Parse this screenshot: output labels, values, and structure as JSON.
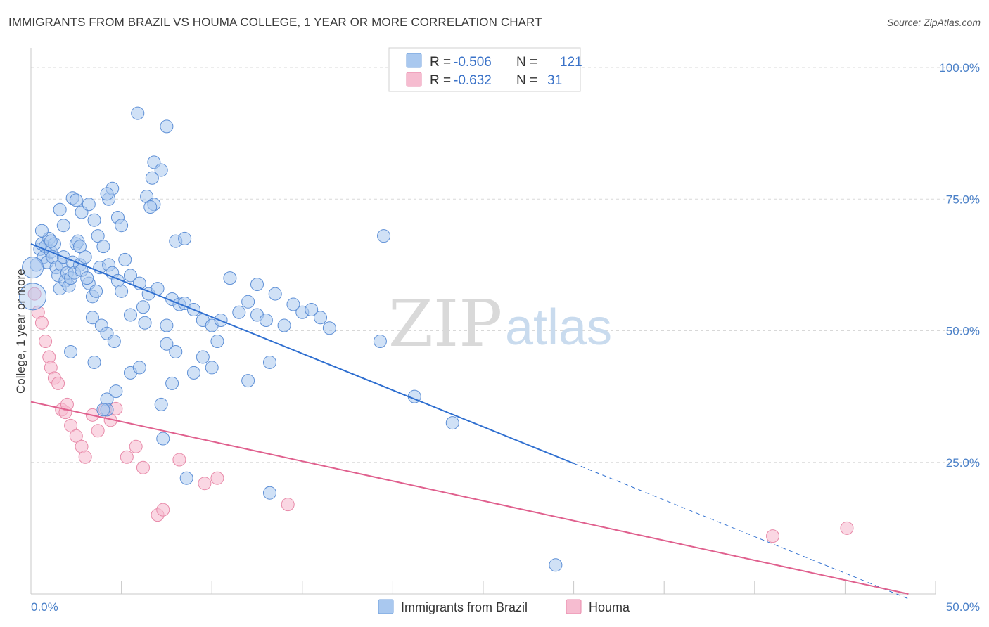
{
  "title": "IMMIGRANTS FROM BRAZIL VS HOUMA COLLEGE, 1 YEAR OR MORE CORRELATION CHART",
  "source": "Source: ZipAtlas.com",
  "watermark": {
    "zip": "ZIP",
    "atlas": "atlas"
  },
  "legend": {
    "r_label": "R =",
    "n_label": "N =",
    "rows": [
      {
        "r": "-0.506",
        "n": "121",
        "color": "#a9c8ef",
        "stroke": "#6f9fdc"
      },
      {
        "r": "-0.632",
        "n": "31",
        "color": "#f6bcd0",
        "stroke": "#e98aab"
      }
    ]
  },
  "colors": {
    "blue_fill": "#a9c8ef",
    "blue_stroke": "#5d8fd6",
    "blue_line": "#2f6fd0",
    "pink_fill": "#f6bcd0",
    "pink_stroke": "#e88aa9",
    "pink_line": "#e0608e",
    "grid": "#d8d8d8",
    "tick": "#4a80c8"
  },
  "chart_data": {
    "type": "scatter",
    "title": "IMMIGRANTS FROM BRAZIL VS HOUMA COLLEGE, 1 YEAR OR MORE CORRELATION CHART",
    "xlabel": "",
    "ylabel": "College, 1 year or more",
    "xlim": [
      0,
      50
    ],
    "ylim": [
      0,
      100
    ],
    "x_tick_labels": [
      "0.0%",
      "50.0%"
    ],
    "y_tick_labels": [
      "100.0%",
      "75.0%",
      "50.0%",
      "25.0%"
    ],
    "y_ticks": [
      100,
      75,
      50,
      25
    ],
    "grid": true,
    "legend_position": "top-center",
    "series": [
      {
        "name": "Immigrants from Brazil",
        "r": -0.506,
        "n": 121,
        "trend": {
          "x0": 0,
          "y0": 66.5,
          "x1": 30,
          "y1": 24.8,
          "dashed_to_x": 50
        },
        "points": [
          [
            0.3,
            62.5
          ],
          [
            0.5,
            65.5
          ],
          [
            0.6,
            66.5
          ],
          [
            0.7,
            64
          ],
          [
            0.8,
            66
          ],
          [
            0.9,
            63
          ],
          [
            1.0,
            67.5
          ],
          [
            1.1,
            65
          ],
          [
            1.2,
            64
          ],
          [
            1.3,
            66.5
          ],
          [
            1.4,
            62
          ],
          [
            1.5,
            60.5
          ],
          [
            1.6,
            58
          ],
          [
            1.7,
            62.5
          ],
          [
            1.8,
            64
          ],
          [
            1.9,
            59.5
          ],
          [
            2.0,
            61
          ],
          [
            2.1,
            58.5
          ],
          [
            2.2,
            60
          ],
          [
            2.3,
            63
          ],
          [
            2.4,
            61
          ],
          [
            2.5,
            66.5
          ],
          [
            2.6,
            67
          ],
          [
            2.7,
            62.5
          ],
          [
            2.8,
            61.5
          ],
          [
            3.0,
            64
          ],
          [
            3.2,
            59
          ],
          [
            3.4,
            56.5
          ],
          [
            3.6,
            57.5
          ],
          [
            3.8,
            62
          ],
          [
            0.6,
            69
          ],
          [
            1.1,
            67
          ],
          [
            1.8,
            70
          ],
          [
            2.3,
            75.2
          ],
          [
            2.5,
            74.8
          ],
          [
            2.8,
            72.5
          ],
          [
            3.2,
            74
          ],
          [
            3.5,
            71
          ],
          [
            3.7,
            68
          ],
          [
            4.0,
            66
          ],
          [
            4.3,
            62.5
          ],
          [
            4.5,
            61
          ],
          [
            4.8,
            59.5
          ],
          [
            5.0,
            57.5
          ],
          [
            5.2,
            63.5
          ],
          [
            5.5,
            60.5
          ],
          [
            6.0,
            59
          ],
          [
            6.2,
            54.5
          ],
          [
            6.5,
            57
          ],
          [
            7.0,
            58
          ],
          [
            7.5,
            51
          ],
          [
            7.8,
            56
          ],
          [
            8.2,
            55
          ],
          [
            8.5,
            55.2
          ],
          [
            9.0,
            54
          ],
          [
            9.5,
            52
          ],
          [
            10.0,
            51
          ],
          [
            10.5,
            52
          ],
          [
            11.0,
            60
          ],
          [
            11.5,
            53.5
          ],
          [
            12.0,
            55.5
          ],
          [
            12.5,
            53
          ],
          [
            13.0,
            52
          ],
          [
            13.5,
            57
          ],
          [
            14.0,
            51
          ],
          [
            14.5,
            55
          ],
          [
            15.0,
            53.5
          ],
          [
            15.5,
            54
          ],
          [
            16.0,
            52.5
          ],
          [
            16.5,
            50.5
          ],
          [
            3.4,
            52.5
          ],
          [
            3.9,
            51
          ],
          [
            4.2,
            49.5
          ],
          [
            4.6,
            48
          ],
          [
            5.5,
            53
          ],
          [
            6.3,
            51.5
          ],
          [
            7.5,
            47.5
          ],
          [
            8.0,
            46
          ],
          [
            9.5,
            45
          ],
          [
            10.3,
            48
          ],
          [
            2.2,
            46
          ],
          [
            3.5,
            44
          ],
          [
            4.2,
            37
          ],
          [
            4.7,
            38.5
          ],
          [
            5.5,
            42
          ],
          [
            6.0,
            43
          ],
          [
            7.2,
            36
          ],
          [
            7.8,
            40
          ],
          [
            9.0,
            42
          ],
          [
            10.0,
            43
          ],
          [
            12.0,
            40.5
          ],
          [
            13.2,
            44
          ],
          [
            4.2,
            35
          ],
          [
            4.0,
            35
          ],
          [
            7.3,
            29.5
          ],
          [
            8.6,
            22
          ],
          [
            13.2,
            19.2
          ],
          [
            21.2,
            37.5
          ],
          [
            19.5,
            68
          ],
          [
            23.3,
            32.5
          ],
          [
            5.9,
            91.3
          ],
          [
            7.5,
            88.8
          ],
          [
            6.8,
            82
          ],
          [
            7.2,
            80.5
          ],
          [
            6.7,
            79
          ],
          [
            6.4,
            75.5
          ],
          [
            6.8,
            74
          ],
          [
            6.6,
            73.5
          ],
          [
            8.0,
            67
          ],
          [
            8.5,
            67.5
          ],
          [
            4.3,
            75
          ],
          [
            4.8,
            71.5
          ],
          [
            5.0,
            70
          ],
          [
            4.5,
            77
          ],
          [
            4.2,
            76
          ],
          [
            1.6,
            73
          ],
          [
            2.7,
            66
          ],
          [
            3.1,
            60
          ],
          [
            12.5,
            58.8
          ],
          [
            19.3,
            48
          ],
          [
            29.0,
            5.5
          ]
        ]
      },
      {
        "name": "Houma",
        "r": -0.632,
        "n": 31,
        "trend": {
          "x0": 0,
          "y0": 36.5,
          "x1": 48.5,
          "y1": 0
        },
        "points": [
          [
            0.2,
            57
          ],
          [
            0.4,
            53.5
          ],
          [
            0.6,
            51.5
          ],
          [
            0.8,
            48
          ],
          [
            1.0,
            45
          ],
          [
            1.1,
            43
          ],
          [
            1.3,
            41
          ],
          [
            1.5,
            40
          ],
          [
            1.7,
            35
          ],
          [
            1.9,
            34.5
          ],
          [
            2.0,
            36
          ],
          [
            2.2,
            32
          ],
          [
            2.5,
            30
          ],
          [
            2.8,
            28
          ],
          [
            3.0,
            26
          ],
          [
            3.4,
            34
          ],
          [
            3.7,
            31
          ],
          [
            4.1,
            35
          ],
          [
            4.4,
            33
          ],
          [
            4.7,
            35.2
          ],
          [
            5.3,
            26
          ],
          [
            5.8,
            28
          ],
          [
            6.2,
            24
          ],
          [
            7.0,
            15
          ],
          [
            7.3,
            16
          ],
          [
            8.2,
            25.5
          ],
          [
            9.6,
            21
          ],
          [
            10.3,
            22
          ],
          [
            14.2,
            17
          ],
          [
            41.0,
            11
          ],
          [
            45.1,
            12.5
          ]
        ]
      }
    ]
  },
  "bottom_legend": {
    "series1": "Immigrants from Brazil",
    "series2": "Houma"
  }
}
